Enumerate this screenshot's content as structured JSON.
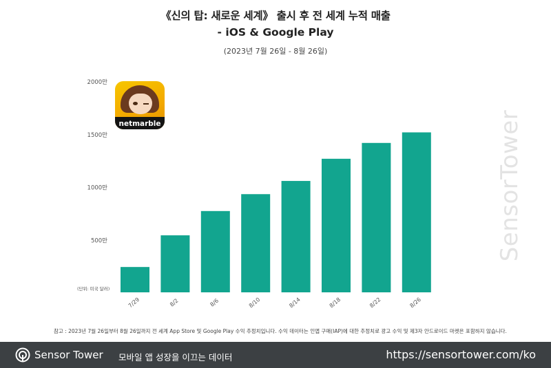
{
  "header": {
    "title_line1": "《신의 탑: 새로운 세계》 출시 후 전 세계 누적 매출",
    "title_line2": "- iOS & Google Play",
    "subtitle": "(2023년 7월 26일 - 8월 26일)"
  },
  "app_icon": {
    "brand": "netmarble"
  },
  "watermark": {
    "text": "SensorTower"
  },
  "chart_data": {
    "type": "bar",
    "categories": [
      "7/29",
      "8/2",
      "8/6",
      "8/10",
      "8/14",
      "8/18",
      "8/22",
      "8/26"
    ],
    "values": [
      240,
      540,
      770,
      930,
      1055,
      1265,
      1415,
      1515
    ],
    "ylim": [
      0,
      2000
    ],
    "yticks": [
      500,
      1000,
      1500,
      2000
    ],
    "ytick_labels": [
      "500만",
      "1000만",
      "1500만",
      "2000만"
    ],
    "unit_note": "(단위: 미국 달러)",
    "bar_color": "#12a58f",
    "grid": false,
    "legend": "none"
  },
  "footnote": "참고 : 2023년 7월 26일부터 8월 26일까지 전 세계 App Store 및 Google Play 수익 추정치입니다. 수익 데이터는 인앱 구매(IAP)에 대한 추정치로 광고 수익 및 제3자 안드로이드 마켓은 포함하지 않습니다.",
  "footer": {
    "brand": "Sensor Tower",
    "tagline": "모바일 앱 성장을 이끄는 데이터",
    "url": "https://sensortower.com/ko",
    "bg_color": "#3c4043"
  }
}
